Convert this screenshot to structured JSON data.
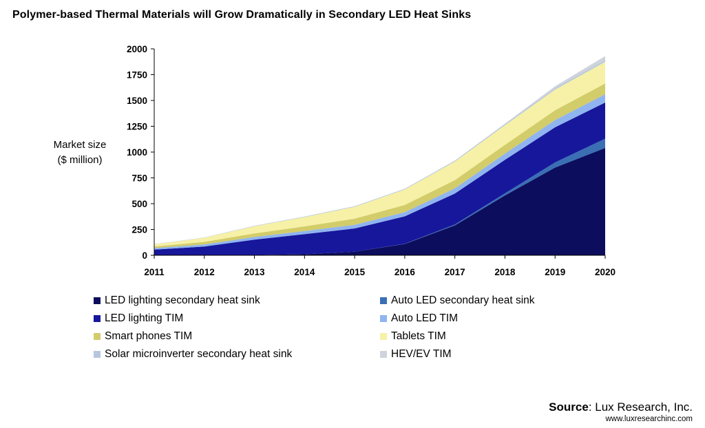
{
  "title": "Polymer-based Thermal Materials will Grow Dramatically in Secondary LED Heat Sinks",
  "source": {
    "label": "Source",
    "text": ": Lux Research, Inc.",
    "url": "www.luxresearchinc.com"
  },
  "chart_data": {
    "type": "area",
    "stacked": true,
    "title": "Polymer-based Thermal Materials will Grow Dramatically in Secondary LED Heat Sinks",
    "ylabel_lines": [
      "Market size",
      "($ million)"
    ],
    "xlabel": "",
    "x": [
      "2011",
      "2012",
      "2013",
      "2014",
      "2015",
      "2016",
      "2017",
      "2018",
      "2019",
      "2020"
    ],
    "ylim": [
      0,
      2000
    ],
    "yticks": [
      0,
      250,
      500,
      750,
      1000,
      1250,
      1500,
      1750,
      2000
    ],
    "legend_position": "bottom",
    "series": [
      {
        "name": "LED lighting secondary heat sink",
        "color": "#0d0d5e",
        "values": [
          0,
          0,
          2,
          10,
          35,
          110,
          290,
          580,
          850,
          1040
        ]
      },
      {
        "name": "Auto LED secondary heat sink",
        "color": "#3a6fb4",
        "values": [
          0,
          0,
          0,
          0,
          0,
          2,
          8,
          20,
          50,
          90
        ]
      },
      {
        "name": "LED lighting TIM",
        "color": "#17179c",
        "values": [
          55,
          85,
          150,
          195,
          225,
          265,
          300,
          325,
          340,
          350
        ]
      },
      {
        "name": "Auto LED TIM",
        "color": "#8fb4f0",
        "values": [
          15,
          20,
          25,
          30,
          35,
          40,
          50,
          60,
          70,
          80
        ]
      },
      {
        "name": "Smart phones TIM",
        "color": "#d2cc6a",
        "values": [
          15,
          25,
          35,
          45,
          60,
          70,
          80,
          85,
          95,
          105
        ]
      },
      {
        "name": "Tablets TIM",
        "color": "#f6f1a6",
        "values": [
          20,
          40,
          70,
          90,
          115,
          150,
          180,
          190,
          200,
          210
        ]
      },
      {
        "name": "Solar microinverter secondary heat sink",
        "color": "#b7c6de",
        "values": [
          2,
          3,
          4,
          5,
          6,
          7,
          8,
          10,
          12,
          15
        ]
      },
      {
        "name": "HEV/EV TIM",
        "color": "#cfd3dc",
        "values": [
          0,
          0,
          0,
          0,
          0,
          0,
          2,
          5,
          20,
          40
        ]
      }
    ]
  }
}
